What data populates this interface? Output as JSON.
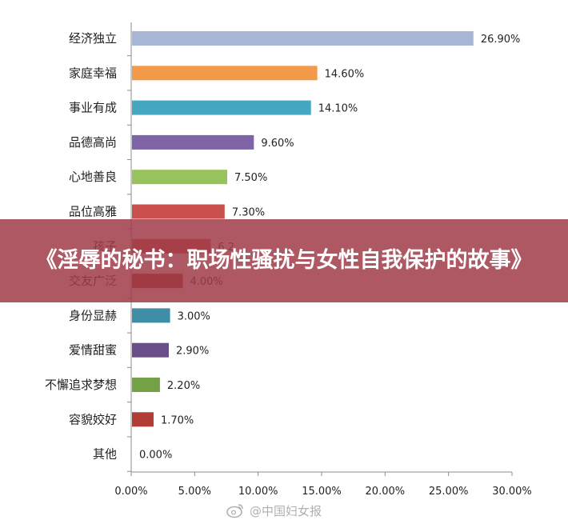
{
  "chart_data": {
    "type": "bar",
    "orientation": "horizontal",
    "categories": [
      "经济独立",
      "家庭幸福",
      "事业有成",
      "品德高尚",
      "心地善良",
      "品位高雅",
      "孩子",
      "交友广泛",
      "身份显赫",
      "爱情甜蜜",
      "不懈追求梦想",
      "容貌姣好",
      "其他"
    ],
    "category_labels_visible": [
      "经济独立",
      "家庭幸福",
      "事业有成",
      "品德高尚",
      "心地善良",
      "品位高雅",
      "孩子",
      "交友广泛",
      "身份显赫",
      "爱情甜蜜",
      "不懈追求梦想",
      "容貌姣好",
      "其他"
    ],
    "values": [
      26.9,
      14.6,
      14.1,
      9.6,
      7.5,
      7.3,
      6.2,
      4.0,
      3.0,
      2.9,
      2.2,
      1.7,
      0.0
    ],
    "value_labels": [
      "26.90%",
      "14.60%",
      "14.10%",
      "9.60%",
      "7.50%",
      "7.30%",
      "6.2",
      "4.00%",
      "3.00%",
      "2.90%",
      "2.20%",
      "1.70%",
      "0.00%"
    ],
    "colors": [
      "#a8b6d6",
      "#f29a4a",
      "#45a7c2",
      "#7e63a6",
      "#98c25c",
      "#c9504c",
      "#c9504c",
      "#a33424",
      "#3f8ea6",
      "#6a4f8a",
      "#74a046",
      "#b23c36",
      "#cccccc"
    ],
    "xlim": [
      0,
      30
    ],
    "xticks": [
      "0.00%",
      "5.00%",
      "10.00%",
      "15.00%",
      "20.00%",
      "25.00%",
      "30.00%"
    ],
    "grid": false,
    "legend": "none"
  },
  "banner": {
    "title": "《淫辱的秘书：职场性骚扰与女性自我保护的故事》"
  },
  "watermark": {
    "text": "@中国妇女报"
  }
}
